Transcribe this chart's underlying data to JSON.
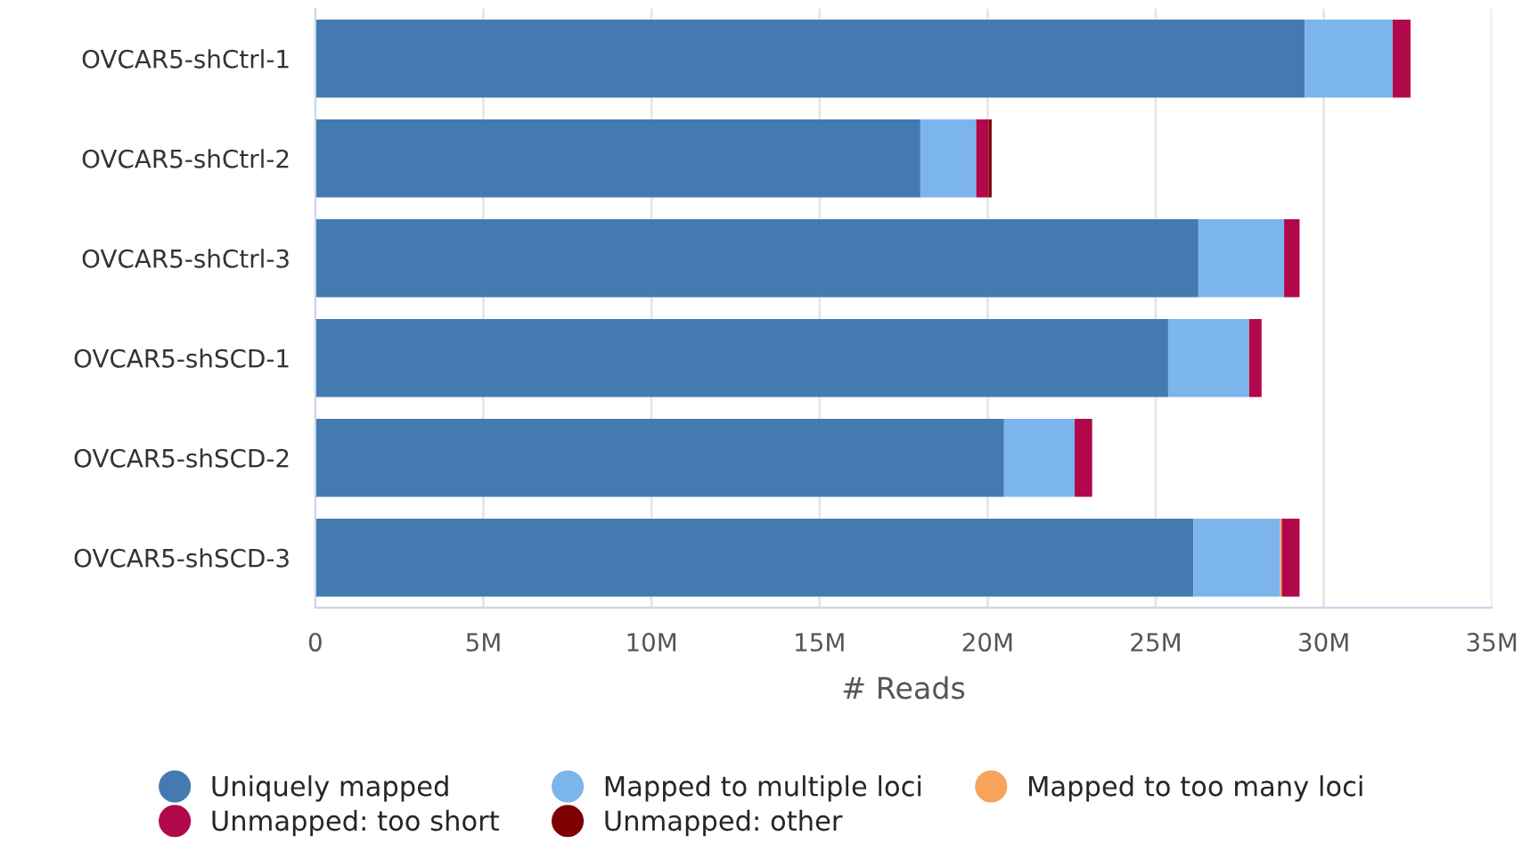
{
  "chart_data": {
    "type": "bar",
    "orientation": "horizontal",
    "stacked": true,
    "categories": [
      "OVCAR5-shCtrl-1",
      "OVCAR5-shCtrl-2",
      "OVCAR5-shCtrl-3",
      "OVCAR5-shSCD-1",
      "OVCAR5-shSCD-2",
      "OVCAR5-shSCD-3"
    ],
    "series": [
      {
        "name": "Uniquely mapped",
        "color": "#437bb1",
        "values": [
          29440000,
          18000000,
          26270000,
          25370000,
          20490000,
          26120000
        ]
      },
      {
        "name": "Mapped to multiple loci",
        "color": "#7cb5ec",
        "values": [
          2610000,
          1660000,
          2550000,
          2410000,
          2100000,
          2580000
        ]
      },
      {
        "name": "Mapped to too many loci",
        "color": "#f7a35c",
        "values": [
          0,
          0,
          0,
          0,
          0,
          50000
        ]
      },
      {
        "name": "Unmapped: too short",
        "color": "#b1084c",
        "values": [
          530000,
          370000,
          460000,
          370000,
          520000,
          530000
        ]
      },
      {
        "name": "Unmapped: other",
        "color": "#7f0000",
        "values": [
          0,
          90000,
          0,
          0,
          0,
          0
        ]
      }
    ],
    "xlabel": "# Reads",
    "xlim": [
      0,
      35000000
    ],
    "xticks": [
      0,
      {
        "value": 5000000,
        "label": "5M"
      },
      {
        "value": 10000000,
        "label": "10M"
      },
      {
        "value": 15000000,
        "label": "15M"
      },
      {
        "value": 20000000,
        "label": "20M"
      },
      {
        "value": 25000000,
        "label": "25M"
      },
      {
        "value": 30000000,
        "label": "30M"
      },
      {
        "value": 35000000,
        "label": "35M"
      }
    ],
    "grid": "x",
    "legend": "bottom"
  }
}
